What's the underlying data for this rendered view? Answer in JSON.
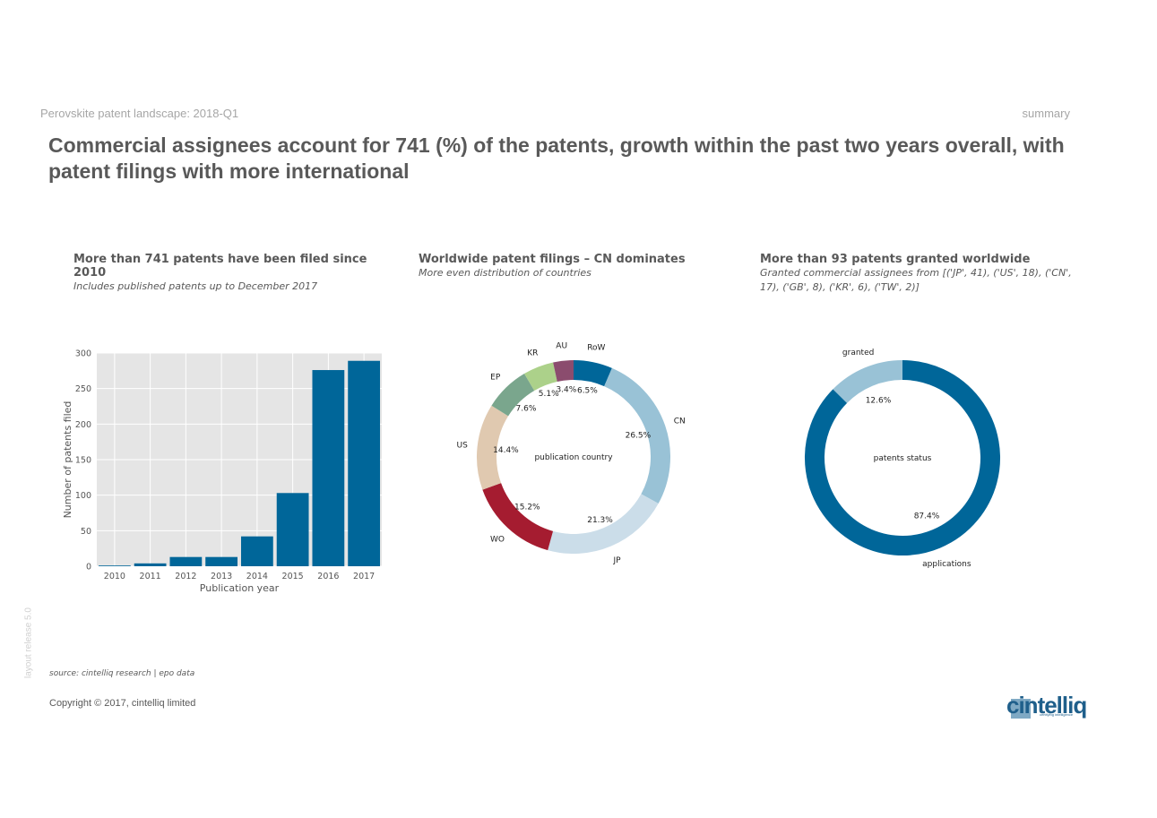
{
  "header": {
    "report_title": "Perovskite patent landscape: 2018-Q1",
    "section_label": "summary",
    "headline": "Commercial assignees account for 741 (%) of the patents, growth within the past two years overall, with patent filings with more international"
  },
  "sections": [
    {
      "title": "More than 741 patents have been filed since 2010",
      "subtitle": "Includes published patents up to December 2017"
    },
    {
      "title": "Worldwide patent filings – CN dominates",
      "subtitle": "More even distribution of countries"
    },
    {
      "title": "More than 93 patents granted worldwide",
      "subtitle": "Granted commercial assignees from [('JP', 41), ('US', 18), ('CN', 17), ('GB', 8), ('KR', 6), ('TW', 2)]"
    }
  ],
  "footer": {
    "side_label": "layout release 5.0",
    "source": "source: cintelliq research | epo data",
    "copyright": "Copyright © 2017, cintelliq limited",
    "logo_text": "cintelliq",
    "logo_tagline": "certifying intelligence"
  },
  "colors": {
    "primary_blue": "#006699",
    "light_blue": "#99c2d6",
    "pale_blue": "#cbdde9",
    "red": "#a51c30",
    "tan": "#e0c9b0",
    "green": "#7aa68d",
    "lime": "#acd18a",
    "purple": "#8b4c6e",
    "plot_bg": "#e5e5e5"
  },
  "chart_data": [
    {
      "type": "bar",
      "categories": [
        "2010",
        "2011",
        "2012",
        "2013",
        "2014",
        "2015",
        "2016",
        "2017"
      ],
      "values": [
        1,
        4,
        13,
        13,
        42,
        103,
        276,
        289
      ],
      "xlabel": "Publication year",
      "ylabel": "Number of patents filed",
      "ylim": [
        0,
        300
      ],
      "yticks": [
        0,
        50,
        100,
        150,
        200,
        250,
        300
      ],
      "grid": true
    },
    {
      "type": "pie",
      "style": "donut",
      "center_label": "publication country",
      "slices": [
        {
          "label": "RoW",
          "pct_label": "6.5%",
          "value": 6.5
        },
        {
          "label": "CN",
          "pct_label": "26.5%",
          "value": 26.5
        },
        {
          "label": "JP",
          "pct_label": "21.3%",
          "value": 21.3
        },
        {
          "label": "WO",
          "pct_label": "15.2%",
          "value": 15.2
        },
        {
          "label": "US",
          "pct_label": "14.4%",
          "value": 14.4
        },
        {
          "label": "EP",
          "pct_label": "7.6%",
          "value": 7.6
        },
        {
          "label": "KR",
          "pct_label": "5.1%",
          "value": 5.1
        },
        {
          "label": "AU",
          "pct_label": "3.4%",
          "value": 3.4
        }
      ]
    },
    {
      "type": "pie",
      "style": "donut",
      "center_label": "patents status",
      "slices": [
        {
          "label": "applications",
          "pct_label": "87.4%",
          "value": 87.4
        },
        {
          "label": "granted",
          "pct_label": "12.6%",
          "value": 12.6
        }
      ]
    }
  ]
}
